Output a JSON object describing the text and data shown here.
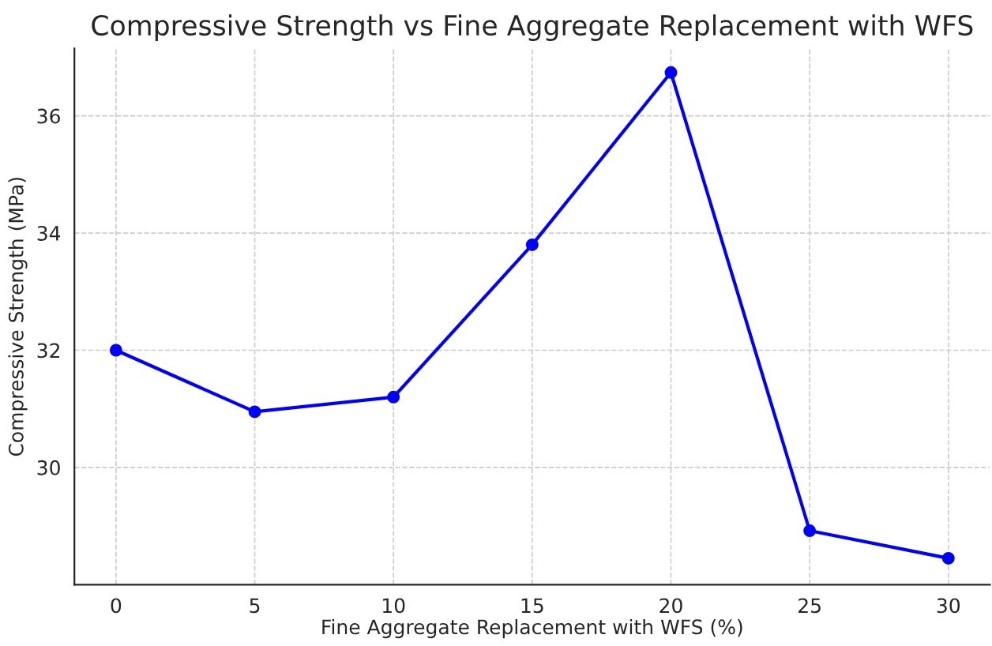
{
  "chart_data": {
    "type": "line",
    "title": "Compressive Strength vs Fine Aggregate Replacement with WFS",
    "xlabel": "Fine Aggregate Replacement with WFS (%)",
    "ylabel": "Compressive Strength (MPa)",
    "x": [
      0,
      5,
      10,
      15,
      20,
      25,
      30
    ],
    "series": [
      {
        "color": "#0000ff",
        "values": [
          32.0,
          30.95,
          31.2,
          33.8,
          36.74,
          28.92,
          28.45
        ]
      }
    ],
    "xlim": [
      -1.5,
      31.5
    ],
    "ylim": [
      28.0,
      37.15
    ],
    "xticks": [
      0,
      5,
      10,
      15,
      20,
      25,
      30
    ],
    "yticks": [
      30,
      32,
      34,
      36
    ],
    "grid": true,
    "marker": "circle",
    "line_style": "solid",
    "legend": false
  }
}
